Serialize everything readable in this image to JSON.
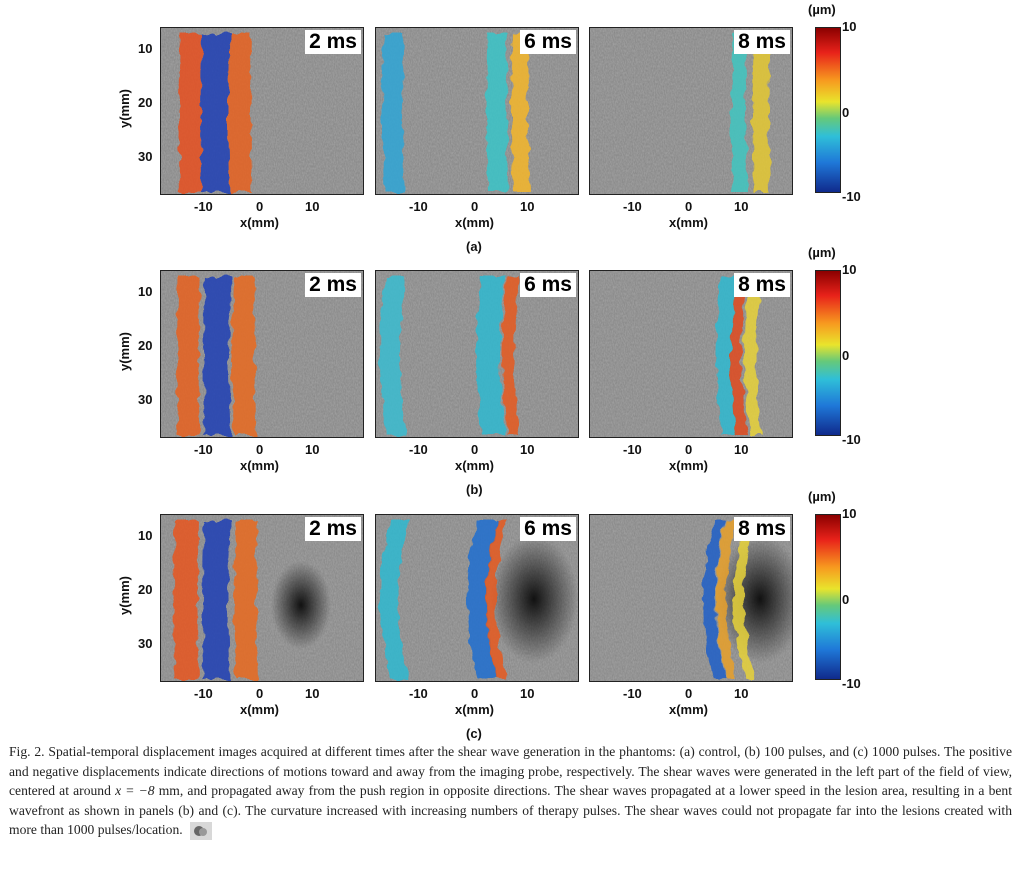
{
  "figure": {
    "rows": [
      {
        "sublabel": "(a)",
        "times": [
          "2 ms",
          "6 ms",
          "8 ms"
        ]
      },
      {
        "sublabel": "(b)",
        "times": [
          "2 ms",
          "6 ms",
          "8 ms"
        ]
      },
      {
        "sublabel": "(c)",
        "times": [
          "2 ms",
          "6 ms",
          "8 ms"
        ]
      }
    ],
    "x_ticks": [
      "-10",
      "0",
      "10"
    ],
    "y_ticks": [
      "10",
      "20",
      "30"
    ],
    "xlabel": "x(mm)",
    "ylabel": "y(mm)",
    "colorbar": {
      "unit": "(µm)",
      "max": "10",
      "mid": "0",
      "min": "-10"
    }
  },
  "caption": {
    "part1": "Fig. 2. Spatial-temporal displacement images acquired at different times after the shear wave generation in the phantoms: (a) control, (b) 100 pulses, and (c) 1000 pulses. The positive and negative displacements indicate directions of motions toward and away from the imaging probe, respectively. The shear waves were generated in the left part of the field of view, centered at around ",
    "math": "x = −8",
    "part2": " mm, and propagated away from the push region in opposite directions. The shear waves propagated at a lower speed in the lesion area, resulting in a bent wavefront as shown in panels (b) and (c). The curvature increased with increasing numbers of therapy pulses. The shear waves could not propagate far into the lesions created with more than 1000 pulses/location."
  }
}
